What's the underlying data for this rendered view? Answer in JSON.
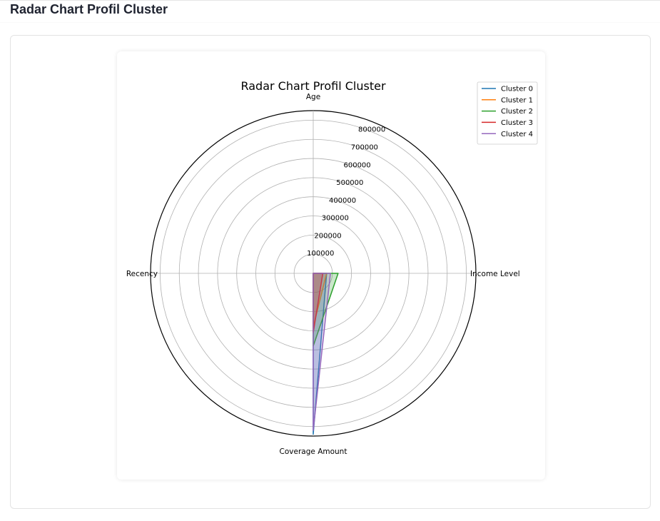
{
  "page": {
    "title": "Radar Chart Profil Cluster"
  },
  "chart_data": {
    "type": "radar",
    "title": "Radar Chart Profil Cluster",
    "axes": [
      "Age",
      "Income Level",
      "Coverage Amount",
      "Recency"
    ],
    "rlim": [
      0,
      850000
    ],
    "rticks": [
      100000,
      200000,
      300000,
      400000,
      500000,
      600000,
      700000,
      800000
    ],
    "rtick_labels": [
      "100000",
      "200000",
      "300000",
      "400000",
      "500000",
      "600000",
      "700000",
      "800000"
    ],
    "grid": true,
    "legend_position": "top-right",
    "series": [
      {
        "name": "Cluster 0",
        "color": "#1f77b4",
        "values": [
          45,
          70000,
          840000,
          50
        ]
      },
      {
        "name": "Cluster 1",
        "color": "#ff7f0e",
        "values": [
          45,
          70000,
          280000,
          50
        ]
      },
      {
        "name": "Cluster 2",
        "color": "#2ca02c",
        "values": [
          45,
          130000,
          380000,
          50
        ]
      },
      {
        "name": "Cluster 3",
        "color": "#d62728",
        "values": [
          45,
          50000,
          310000,
          50
        ]
      },
      {
        "name": "Cluster 4",
        "color": "#9467bd",
        "values": [
          45,
          90000,
          820000,
          50
        ]
      }
    ]
  }
}
